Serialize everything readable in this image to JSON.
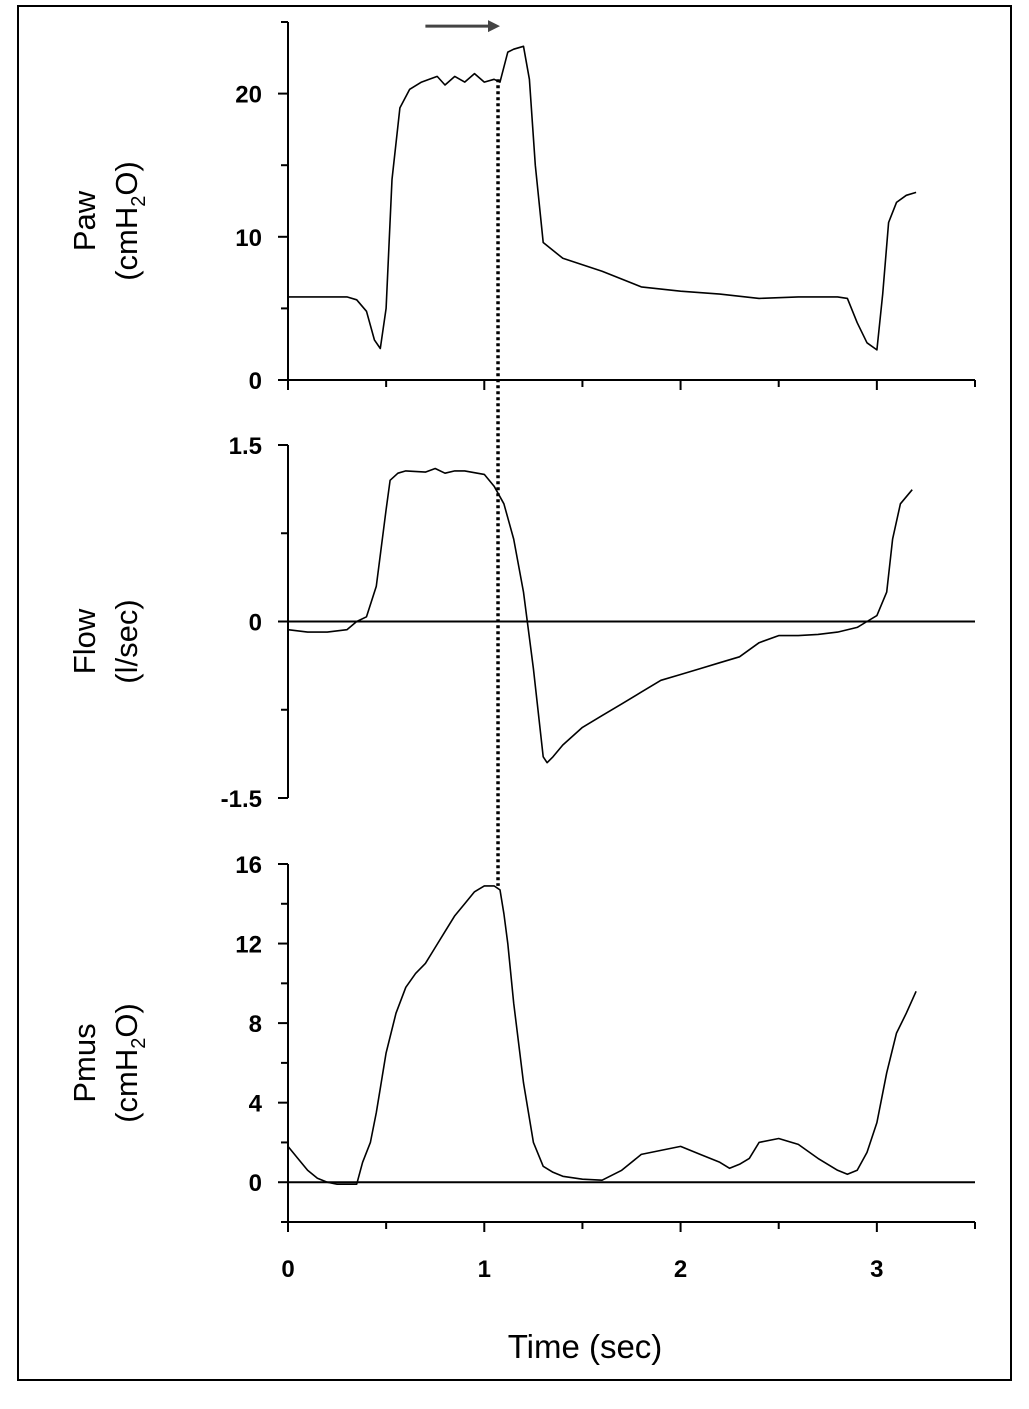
{
  "chart_data": {
    "type": "line",
    "shared_x": {
      "label": "Time (sec)",
      "range": [
        0,
        3.5
      ],
      "ticks": [
        0,
        1,
        2,
        3
      ]
    },
    "panels": [
      {
        "id": "paw",
        "ylabel": {
          "line1": "Paw",
          "line2_main": "(cmH",
          "line2_sub": "2",
          "line2_tail": "O)"
        },
        "ylim": [
          0,
          25
        ],
        "ticks": [
          0,
          10,
          20
        ],
        "zero_line": false,
        "series": [
          {
            "x": [
              0,
              0.1,
              0.2,
              0.3,
              0.35,
              0.4,
              0.44,
              0.47,
              0.5,
              0.53,
              0.57,
              0.62,
              0.68,
              0.72,
              0.76,
              0.8,
              0.85,
              0.9,
              0.95,
              1.0,
              1.05,
              1.08,
              1.12,
              1.15,
              1.2,
              1.23,
              1.26,
              1.3,
              1.4,
              1.6,
              1.8,
              2.0,
              2.2,
              2.4,
              2.6,
              2.7,
              2.8,
              2.85,
              2.9,
              2.95,
              3.0,
              3.03,
              3.06,
              3.1,
              3.15,
              3.2
            ],
            "y": [
              5.8,
              5.8,
              5.8,
              5.8,
              5.6,
              4.8,
              2.8,
              2.2,
              5.0,
              14.0,
              19.0,
              20.3,
              20.8,
              21.0,
              21.2,
              20.6,
              21.2,
              20.8,
              21.4,
              20.8,
              21.0,
              20.8,
              22.9,
              23.1,
              23.3,
              21.0,
              15.0,
              9.6,
              8.5,
              7.6,
              6.5,
              6.2,
              6.0,
              5.7,
              5.8,
              5.8,
              5.8,
              5.7,
              4.0,
              2.6,
              2.1,
              6.0,
              11.0,
              12.4,
              12.9,
              13.1
            ]
          }
        ]
      },
      {
        "id": "flow",
        "ylabel": {
          "line1": "Flow",
          "line2_main": "(l/sec)",
          "line2_sub": "",
          "line2_tail": ""
        },
        "ylim": [
          -1.5,
          1.5
        ],
        "ticks": [
          -1.5,
          0,
          1.5
        ],
        "tick_labels": [
          "-1.5",
          "0",
          "1.5"
        ],
        "zero_line": true,
        "series": [
          {
            "x": [
              0,
              0.1,
              0.2,
              0.3,
              0.35,
              0.4,
              0.45,
              0.5,
              0.52,
              0.56,
              0.6,
              0.7,
              0.75,
              0.8,
              0.85,
              0.9,
              1.0,
              1.05,
              1.1,
              1.15,
              1.2,
              1.25,
              1.3,
              1.32,
              1.35,
              1.4,
              1.5,
              1.6,
              1.7,
              1.8,
              1.9,
              2.0,
              2.1,
              2.2,
              2.3,
              2.4,
              2.5,
              2.6,
              2.7,
              2.8,
              2.9,
              2.95,
              3.0,
              3.05,
              3.08,
              3.12,
              3.18
            ],
            "y": [
              -0.07,
              -0.09,
              -0.09,
              -0.07,
              0.0,
              0.04,
              0.3,
              0.95,
              1.2,
              1.26,
              1.28,
              1.27,
              1.3,
              1.26,
              1.28,
              1.28,
              1.25,
              1.15,
              1.0,
              0.7,
              0.25,
              -0.4,
              -1.15,
              -1.2,
              -1.15,
              -1.05,
              -0.9,
              -0.8,
              -0.7,
              -0.6,
              -0.5,
              -0.45,
              -0.4,
              -0.35,
              -0.3,
              -0.18,
              -0.12,
              -0.12,
              -0.11,
              -0.09,
              -0.05,
              0.0,
              0.05,
              0.25,
              0.7,
              1.0,
              1.12
            ]
          }
        ]
      },
      {
        "id": "pmus",
        "ylabel": {
          "line1": "Pmus",
          "line2_main": "(cmH",
          "line2_sub": "2",
          "line2_tail": "O)"
        },
        "ylim": [
          -2,
          16
        ],
        "ticks": [
          0,
          4,
          8,
          12,
          16
        ],
        "zero_line": true,
        "series": [
          {
            "x": [
              0,
              0.05,
              0.1,
              0.15,
              0.2,
              0.25,
              0.3,
              0.35,
              0.38,
              0.42,
              0.45,
              0.5,
              0.55,
              0.6,
              0.65,
              0.7,
              0.75,
              0.8,
              0.85,
              0.9,
              0.95,
              1.0,
              1.05,
              1.08,
              1.1,
              1.12,
              1.15,
              1.2,
              1.25,
              1.3,
              1.35,
              1.4,
              1.5,
              1.6,
              1.7,
              1.8,
              1.9,
              2.0,
              2.1,
              2.2,
              2.25,
              2.3,
              2.35,
              2.4,
              2.5,
              2.6,
              2.7,
              2.8,
              2.85,
              2.9,
              2.95,
              3.0,
              3.05,
              3.1,
              3.15,
              3.2
            ],
            "y": [
              1.8,
              1.2,
              0.6,
              0.2,
              0.0,
              -0.1,
              -0.1,
              -0.1,
              1.0,
              2.0,
              3.5,
              6.5,
              8.5,
              9.8,
              10.5,
              11.0,
              11.8,
              12.6,
              13.4,
              14.0,
              14.6,
              14.9,
              14.9,
              14.7,
              13.5,
              12.0,
              9.0,
              5.0,
              2.0,
              0.8,
              0.5,
              0.3,
              0.15,
              0.1,
              0.6,
              1.4,
              1.6,
              1.8,
              1.4,
              1.0,
              0.7,
              0.9,
              1.2,
              2.0,
              2.2,
              1.9,
              1.2,
              0.6,
              0.4,
              0.6,
              1.5,
              3.0,
              5.5,
              7.5,
              8.5,
              9.6
            ]
          }
        ]
      }
    ],
    "annotations": {
      "arrow": {
        "x_start": 0.7,
        "x_end": 1.08,
        "panel": "paw",
        "y": 24.5,
        "direction": "right"
      },
      "dotted_line": {
        "x": 1.07,
        "from_panel": "paw",
        "from_y": 21.0,
        "to_panel": "pmus",
        "to_y": 14.9
      }
    }
  }
}
